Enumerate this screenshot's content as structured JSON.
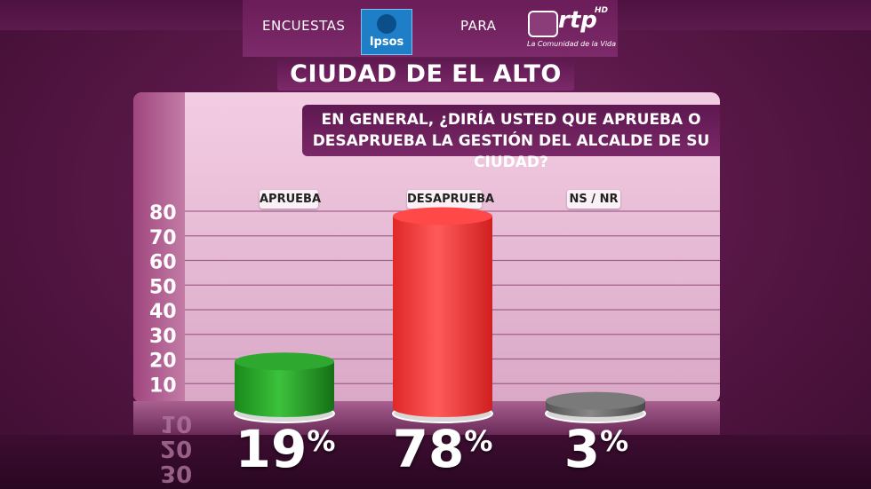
{
  "header": {
    "encuestas": "ENCUESTAS",
    "ipsos": "Ipsos",
    "para": "PARA",
    "rtp": "rtp",
    "rtp_hd": "HD",
    "rtp_sub": "La Comunidad de la Vida"
  },
  "city_title": "CIUDAD DE EL ALTO",
  "question": {
    "line1": "EN GENERAL, ¿DIRÍA USTED QUE APRUEBA O",
    "line2": "DESAPRUEBA LA GESTIÓN DEL ALCALDE DE SU CIUDAD?"
  },
  "reflection": {
    "r1": "10",
    "r2": "20",
    "r3": "30"
  },
  "chart_data": {
    "type": "bar",
    "title": "",
    "categories": [
      "APRUEBA",
      "DESAPRUEBA",
      "NS / NR"
    ],
    "values": [
      19,
      78,
      3
    ],
    "value_labels": [
      "19%",
      "78%",
      "3%"
    ],
    "ylim": [
      0,
      80
    ],
    "yticks": [
      10,
      20,
      30,
      40,
      50,
      60,
      70,
      80
    ],
    "grid": true,
    "colors": [
      "#22a022",
      "#f33a3a",
      "#6a6a6a"
    ]
  }
}
